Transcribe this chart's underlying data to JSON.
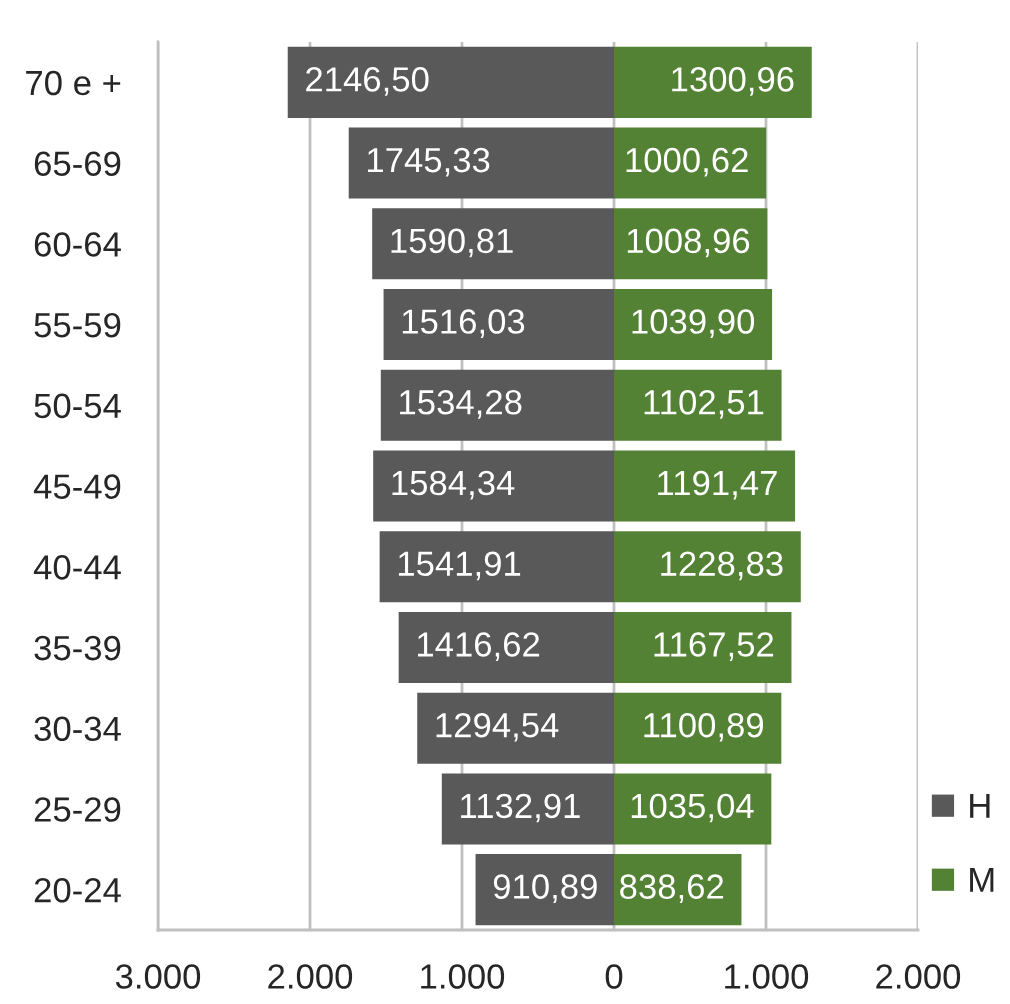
{
  "chart_data": {
    "type": "bar",
    "orientation": "horizontal",
    "categories": [
      "70 e +",
      "65-69",
      "60-64",
      "55-59",
      "50-54",
      "45-49",
      "40-44",
      "35-39",
      "30-34",
      "25-29",
      "20-24"
    ],
    "series": [
      {
        "name": "H",
        "color": "#595959",
        "base": [
          -2146.5,
          -1745.33,
          -1590.81,
          -1516.03,
          -1534.28,
          -1584.34,
          -1541.91,
          -1416.62,
          -1294.54,
          -1132.91,
          -910.89
        ],
        "values": [
          2146.5,
          1745.33,
          1590.81,
          1516.03,
          1534.28,
          1584.34,
          1541.91,
          1416.62,
          1294.54,
          1132.91,
          910.89
        ],
        "value_labels": [
          "2146,50",
          "1745,33",
          "1590,81",
          "1516,03",
          "1534,28",
          "1584,34",
          "1541,91",
          "1416,62",
          "1294,54",
          "1132,91",
          "910,89"
        ]
      },
      {
        "name": "M",
        "color": "#548235",
        "values": [
          1300.96,
          1000.62,
          1008.96,
          1039.9,
          1102.51,
          1191.47,
          1228.83,
          1167.52,
          1100.89,
          1035.04,
          838.62
        ],
        "value_labels": [
          "1300,96",
          "1000,62",
          "1008,96",
          "1039,90",
          "1102,51",
          "1191,47",
          "1228,83",
          "1167,52",
          "1100,89",
          "1035,04",
          "838,62"
        ]
      }
    ],
    "xlim": [
      -3000,
      2000
    ],
    "xticks": [
      {
        "value": -3000,
        "label": "3.000"
      },
      {
        "value": -2000,
        "label": "2.000"
      },
      {
        "value": -1000,
        "label": "1.000"
      },
      0,
      {
        "value": 1000,
        "label": "1.000"
      },
      {
        "value": 2000,
        "label": "2.000"
      }
    ],
    "grid": "x",
    "legend": "bottom right"
  }
}
